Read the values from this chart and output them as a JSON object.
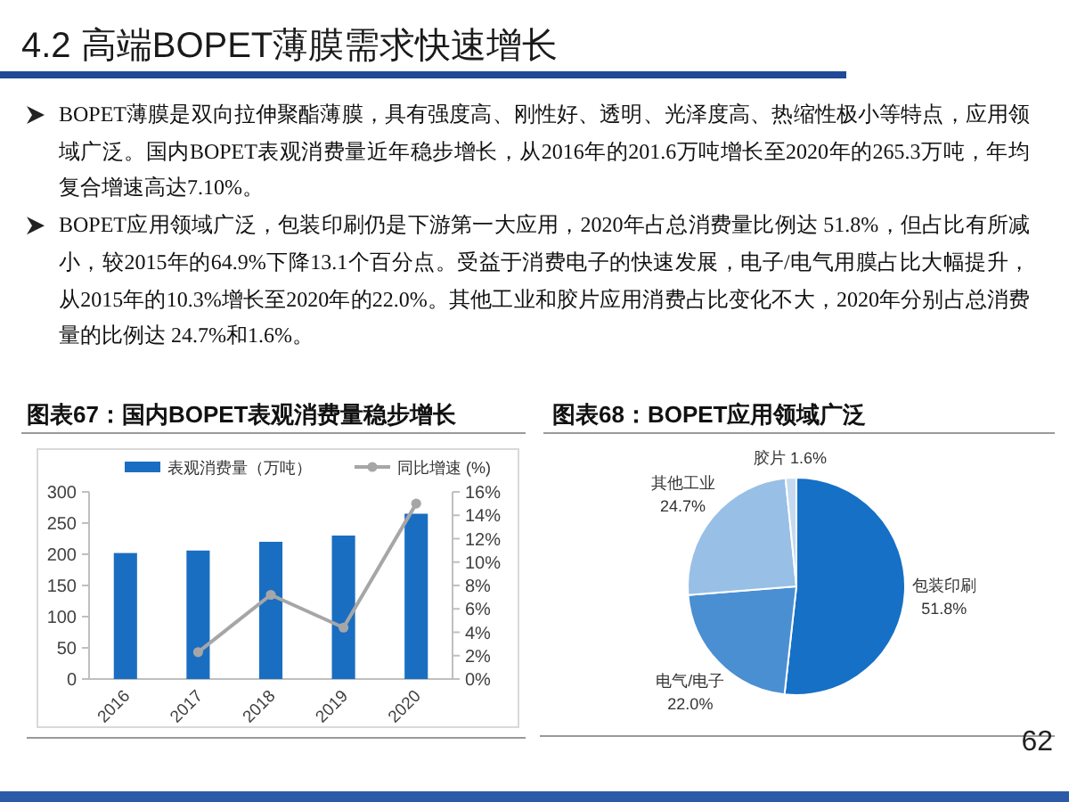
{
  "chart_data": [
    {
      "type": "other",
      "title": "4.2 高端BOPET薄膜需求快速增长",
      "annotations": [
        "BOPET薄膜是双向拉伸聚酯薄膜，具有强度高、刚性好、透明、光泽度高、热缩性极小等特点，应用领域广泛。国内BOPET表观消费量近年稳步增长，从2016年的201.6万吨增长至2020年的265.3万吨，年均复合增速高达7.10%。",
        "BOPET应用领域广泛，包装印刷仍是下游第一大应用，2020年占总消费量比例达 51.8%，但占比有所减小，较2015年的64.9%下降13.1个百分点。受益于消费电子的快速发展，电子/电气用膜占比大幅提升，从2015年的10.3%增长至2020年的22.0%。其他工业和胶片应用消费占比变化不大，2020年分别占总消费量的比例达 24.7%和1.6%。"
      ]
    },
    {
      "type": "bar",
      "title": "图表67：国内BOPET表观消费量稳步增长",
      "categories": [
        "2016",
        "2017",
        "2018",
        "2019",
        "2020"
      ],
      "series": [
        {
          "name": "表观消费量（万吨）",
          "color": "#1a6ec2",
          "values": [
            202,
            206,
            220,
            230,
            265
          ]
        },
        {
          "name": "同比增速 (%)",
          "type": "line",
          "axis": "y2",
          "color": "#a6a6a6",
          "values": [
            null,
            2.3,
            7.2,
            4.4,
            15.0
          ]
        }
      ],
      "ylim": [
        0,
        300
      ],
      "yticks": [
        0,
        50,
        100,
        150,
        200,
        250,
        300
      ],
      "y2lim": [
        0,
        16
      ],
      "y2ticks": [
        {
          "value": 0,
          "label": "0%"
        },
        {
          "value": 2,
          "label": "2%"
        },
        {
          "value": 4,
          "label": "4%"
        },
        {
          "value": 6,
          "label": "6%"
        },
        {
          "value": 8,
          "label": "8%"
        },
        {
          "value": 10,
          "label": "10%"
        },
        {
          "value": 12,
          "label": "12%"
        },
        {
          "value": 14,
          "label": "14%"
        },
        {
          "value": 16,
          "label": "16%"
        }
      ],
      "legend": "top",
      "marker": "circle"
    },
    {
      "type": "pie",
      "title": "图表68：BOPET应用领域广泛",
      "categories": [
        "包装印刷",
        "电气/电子",
        "其他工业",
        "胶片"
      ],
      "values": [
        51.8,
        22.0,
        24.7,
        1.6
      ],
      "colors": [
        "#1570c6",
        "#4b8fd3",
        "#98bfe6",
        "#c6daef"
      ],
      "value_labels": [
        "51.8%",
        "22.0%",
        "24.7%",
        "1.6%"
      ],
      "annotations": [
        "62"
      ]
    }
  ]
}
